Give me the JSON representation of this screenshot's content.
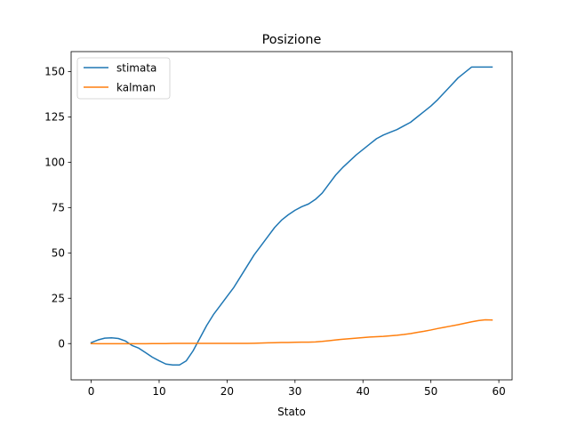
{
  "chart_data": {
    "type": "line",
    "title": "Posizione",
    "xlabel": "Stato",
    "ylabel": "",
    "xlim": [
      -2.95,
      61.95
    ],
    "ylim": [
      -20,
      161
    ],
    "xticks": [
      0,
      10,
      20,
      30,
      40,
      50,
      60
    ],
    "yticks": [
      0,
      25,
      50,
      75,
      100,
      125,
      150
    ],
    "grid": false,
    "legend": {
      "placement": "upper-left"
    },
    "series": [
      {
        "name": "stimata",
        "color": "#1f77b4",
        "x": [
          0,
          1,
          2,
          3,
          4,
          5,
          6,
          7,
          8,
          9,
          10,
          11,
          12,
          13,
          14,
          15,
          16,
          17,
          18,
          19,
          20,
          21,
          22,
          23,
          24,
          25,
          26,
          27,
          28,
          29,
          30,
          31,
          32,
          33,
          34,
          35,
          36,
          37,
          38,
          39,
          40,
          41,
          42,
          43,
          44,
          45,
          46,
          47,
          48,
          49,
          50,
          51,
          52,
          53,
          54,
          55,
          56,
          57,
          58,
          59
        ],
        "values": [
          0.5,
          2,
          3,
          3.2,
          2.8,
          1.5,
          -1,
          -2.5,
          -5,
          -7.5,
          -9.5,
          -11.3,
          -11.8,
          -11.8,
          -9.5,
          -4,
          3,
          10,
          16,
          21,
          26,
          31,
          37,
          43,
          49,
          54,
          59,
          64,
          68,
          71,
          73.5,
          75.5,
          77,
          79.5,
          83,
          88,
          93,
          97,
          100.5,
          104,
          107,
          110,
          113,
          115,
          116.5,
          118,
          120,
          122,
          125,
          128,
          131,
          134.5,
          138.5,
          142.5,
          146.5,
          149.5,
          152.5,
          152.5,
          152.5,
          152.5
        ]
      },
      {
        "name": "kalman",
        "color": "#ff7f0e",
        "x": [
          0,
          1,
          2,
          3,
          4,
          5,
          6,
          7,
          8,
          9,
          10,
          11,
          12,
          13,
          14,
          15,
          16,
          17,
          18,
          19,
          20,
          21,
          22,
          23,
          24,
          25,
          26,
          27,
          28,
          29,
          30,
          31,
          32,
          33,
          34,
          35,
          36,
          37,
          38,
          39,
          40,
          41,
          42,
          43,
          44,
          45,
          46,
          47,
          48,
          49,
          50,
          51,
          52,
          53,
          54,
          55,
          56,
          57,
          58,
          59
        ],
        "values": [
          0,
          -0.1,
          -0.1,
          -0.1,
          -0.1,
          -0.1,
          -0.1,
          -0.1,
          -0.1,
          0,
          0,
          0,
          0.1,
          0.1,
          0.1,
          0.1,
          0.1,
          0.1,
          0.1,
          0.1,
          0.1,
          0.1,
          0.1,
          0.1,
          0.2,
          0.3,
          0.4,
          0.5,
          0.6,
          0.6,
          0.7,
          0.8,
          0.8,
          0.9,
          1.2,
          1.6,
          2,
          2.4,
          2.7,
          3,
          3.3,
          3.6,
          3.8,
          4,
          4.3,
          4.6,
          5,
          5.5,
          6.2,
          6.8,
          7.5,
          8.3,
          9,
          9.7,
          10.4,
          11.2,
          12,
          12.7,
          13.1,
          13
        ]
      }
    ]
  }
}
